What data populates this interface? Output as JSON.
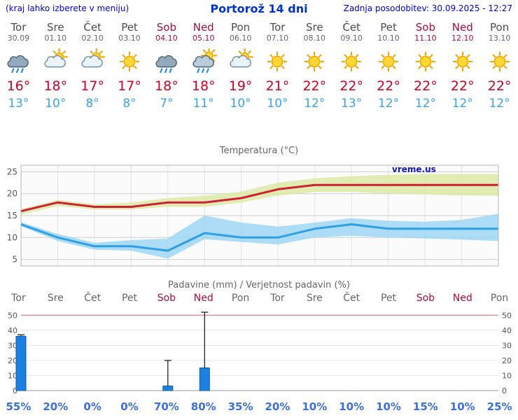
{
  "header": {
    "hint": "(kraj lahko izberete v meniju)",
    "title": "Portorož 14 dni",
    "updated": "Zadnja posodobitev: 30.09.2025 - 12:27"
  },
  "colors": {
    "header_blue": "#0000d0",
    "title_blue": "#0033cc",
    "day_gray": "#4c4c4c",
    "weekend_red": "#a0103a",
    "temp_high_red": "#d00024",
    "temp_low_blue": "#3aa2f2",
    "bar_blue": "#1c80e3",
    "probability_blue": "#3a6fd8"
  },
  "days": [
    {
      "name": "Tor",
      "date": "30.09",
      "weekend": false,
      "icon": "rain",
      "tmax": "16°",
      "tmin": "13°",
      "precip_prob": "55%"
    },
    {
      "name": "Sre",
      "date": "01.10",
      "weekend": false,
      "icon": "partly-cloudy",
      "tmax": "18°",
      "tmin": "10°",
      "precip_prob": "20%"
    },
    {
      "name": "Čet",
      "date": "02.10",
      "weekend": false,
      "icon": "partly-cloudy",
      "tmax": "17°",
      "tmin": "8°",
      "precip_prob": "0%"
    },
    {
      "name": "Pet",
      "date": "03.10",
      "weekend": false,
      "icon": "sunny",
      "tmax": "17°",
      "tmin": "8°",
      "precip_prob": "0%"
    },
    {
      "name": "Sob",
      "date": "04.10",
      "weekend": true,
      "icon": "rain",
      "tmax": "18°",
      "tmin": "7°",
      "precip_prob": "70%"
    },
    {
      "name": "Ned",
      "date": "05.10",
      "weekend": true,
      "icon": "sun-rain",
      "tmax": "18°",
      "tmin": "11°",
      "precip_prob": "80%"
    },
    {
      "name": "Pon",
      "date": "06.10",
      "weekend": false,
      "icon": "partly-cloudy",
      "tmax": "19°",
      "tmin": "10°",
      "precip_prob": "35%"
    },
    {
      "name": "Tor",
      "date": "07.10",
      "weekend": false,
      "icon": "sunny",
      "tmax": "21°",
      "tmin": "10°",
      "precip_prob": "20%"
    },
    {
      "name": "Sre",
      "date": "08.10",
      "weekend": false,
      "icon": "sunny",
      "tmax": "22°",
      "tmin": "12°",
      "precip_prob": "10%"
    },
    {
      "name": "Čet",
      "date": "09.10",
      "weekend": false,
      "icon": "sunny",
      "tmax": "22°",
      "tmin": "13°",
      "precip_prob": "10%"
    },
    {
      "name": "Pet",
      "date": "10.10",
      "weekend": false,
      "icon": "sunny",
      "tmax": "22°",
      "tmin": "12°",
      "precip_prob": "10%"
    },
    {
      "name": "Sob",
      "date": "11.10",
      "weekend": true,
      "icon": "sunny",
      "tmax": "22°",
      "tmin": "12°",
      "precip_prob": "15%"
    },
    {
      "name": "Ned",
      "date": "12.10",
      "weekend": true,
      "icon": "sunny",
      "tmax": "22°",
      "tmin": "12°",
      "precip_prob": "10%"
    },
    {
      "name": "Pon",
      "date": "13.10",
      "weekend": false,
      "icon": "sunny",
      "tmax": "22°",
      "tmin": "12°",
      "precip_prob": "25%"
    }
  ],
  "chart_data": [
    {
      "type": "line",
      "title": "Temperatura (°C)",
      "watermark": "vreme.us",
      "x": [
        "Tor 30.09",
        "Sre 01.10",
        "Čet 02.10",
        "Pet 03.10",
        "Sob 04.10",
        "Ned 05.10",
        "Pon 06.10",
        "Tor 07.10",
        "Sre 08.10",
        "Čet 09.10",
        "Pet 10.10",
        "Sob 11.10",
        "Ned 12.10",
        "Pon 13.10"
      ],
      "series": [
        {
          "name": "max-temperature",
          "color": "#cc2233",
          "band_color": "#dce9a4",
          "values": [
            16,
            18,
            17,
            17,
            18,
            18,
            19,
            21,
            22,
            22,
            22,
            22,
            22,
            22
          ],
          "band_low": [
            15.2,
            17.2,
            16.4,
            16.4,
            17,
            17,
            18,
            19.6,
            20.4,
            20.4,
            20,
            19.8,
            19.6,
            19.5
          ],
          "band_high": [
            16.5,
            18.6,
            17.6,
            18,
            19,
            19.5,
            20.5,
            22.5,
            23.5,
            24,
            24.3,
            24.5,
            24.5,
            24.5
          ]
        },
        {
          "name": "min-temperature",
          "color": "#2f9fe8",
          "band_color": "#9fd6f5",
          "values": [
            13,
            10,
            8,
            8,
            7,
            11,
            10,
            10,
            12,
            13,
            12,
            12,
            12,
            12
          ],
          "band_low": [
            12.6,
            9.2,
            7.2,
            7,
            5.2,
            9.6,
            9,
            8.4,
            10,
            10.4,
            10,
            9.8,
            9.5,
            9.2
          ],
          "band_high": [
            13.5,
            10.8,
            8.8,
            9.4,
            9.8,
            15,
            13.4,
            12.5,
            13.4,
            14.4,
            13.8,
            13.6,
            14,
            15.4
          ]
        }
      ],
      "ylim": [
        3.5,
        26.5
      ],
      "yticks": [
        5,
        10,
        15,
        20,
        25
      ],
      "grid": true,
      "legend": "none"
    },
    {
      "type": "bar",
      "title": "Padavine (mm) / Verjetnost padavin (%)",
      "categories": [
        "Tor",
        "Sre",
        "Čet",
        "Pet",
        "Sob",
        "Ned",
        "Pon",
        "Tor",
        "Sre",
        "Čet",
        "Pet",
        "Sob",
        "Ned",
        "Pon"
      ],
      "values": [
        36,
        0,
        0,
        0,
        3,
        15,
        0,
        0,
        0,
        0,
        0,
        0,
        0,
        0
      ],
      "whisker_low": [
        34,
        0,
        0,
        0,
        3,
        15,
        0,
        0,
        0,
        0,
        0,
        0,
        0,
        0
      ],
      "whisker_high": [
        37,
        0,
        0,
        0,
        20,
        52,
        0,
        0,
        0,
        0,
        0,
        0,
        0,
        0
      ],
      "probabilities": [
        55,
        20,
        0,
        0,
        70,
        80,
        35,
        20,
        10,
        10,
        10,
        15,
        10,
        25
      ],
      "bar_color": "#1c80e3",
      "limit_line": {
        "value": 50,
        "color": "#e98b8b"
      },
      "ylim": [
        0,
        52
      ],
      "yticks": [
        0,
        10,
        20,
        30,
        40,
        50
      ],
      "grid": true
    }
  ]
}
